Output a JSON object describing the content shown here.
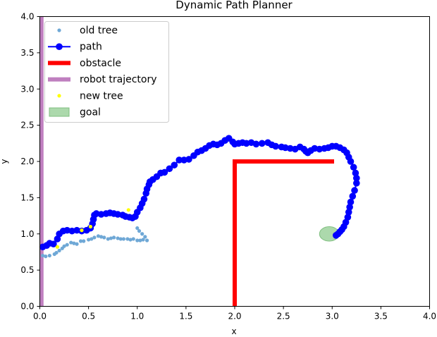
{
  "chart_data": {
    "type": "scatter",
    "title": "Dynamic Path Planner",
    "xlabel": "x",
    "ylabel": "y",
    "xlim": [
      0.0,
      4.0
    ],
    "ylim": [
      0.0,
      4.0
    ],
    "grid": false,
    "legend_position": "top-left",
    "x_ticks": [
      "0.0",
      "0.5",
      "1.0",
      "1.5",
      "2.0",
      "2.5",
      "3.0",
      "3.5",
      "4.0"
    ],
    "y_ticks": [
      "0.0",
      "0.5",
      "1.0",
      "1.5",
      "2.0",
      "2.5",
      "3.0",
      "3.5",
      "4.0"
    ],
    "legend": [
      {
        "label": "old tree",
        "kind": "dot",
        "color": "#6fa8d6"
      },
      {
        "label": "path",
        "kind": "line-marker",
        "color": "#0000ff"
      },
      {
        "label": "obstacle",
        "kind": "thick-line",
        "color": "#ff0000"
      },
      {
        "label": "robot trajectory",
        "kind": "thick-line",
        "color": "#bf7fbf"
      },
      {
        "label": "new tree",
        "kind": "dot",
        "color": "#ffff00"
      },
      {
        "label": "goal",
        "kind": "patch",
        "color": "#90cc90"
      }
    ],
    "series": [
      {
        "name": "old tree",
        "color": "#6fa8d6",
        "x": [
          0.03,
          0.06,
          0.1,
          0.15,
          0.17,
          0.2,
          0.23,
          0.25,
          0.28,
          0.32,
          0.35,
          0.38,
          0.42,
          0.45,
          0.5,
          0.53,
          0.56,
          0.6,
          0.63,
          0.66,
          0.7,
          0.73,
          0.76,
          0.8,
          0.83,
          0.86,
          0.9,
          0.93,
          0.96,
          1.0,
          1.03,
          1.06,
          1.1,
          1.0,
          1.02,
          1.05,
          1.08
        ],
        "y": [
          0.7,
          0.69,
          0.7,
          0.72,
          0.74,
          0.77,
          0.8,
          0.83,
          0.85,
          0.88,
          0.87,
          0.86,
          0.9,
          0.9,
          0.92,
          0.93,
          0.95,
          0.97,
          0.96,
          0.95,
          0.93,
          0.94,
          0.95,
          0.94,
          0.93,
          0.93,
          0.93,
          0.92,
          0.93,
          0.91,
          0.91,
          0.92,
          0.91,
          1.08,
          1.04,
          1.0,
          0.96
        ]
      },
      {
        "name": "path",
        "color": "#0000ff",
        "x": [
          0.03,
          0.07,
          0.1,
          0.14,
          0.18,
          0.2,
          0.24,
          0.28,
          0.33,
          0.38,
          0.43,
          0.48,
          0.52,
          0.54,
          0.55,
          0.56,
          0.58,
          0.63,
          0.68,
          0.72,
          0.76,
          0.8,
          0.85,
          0.88,
          0.92,
          0.95,
          0.98,
          1.0,
          1.03,
          1.05,
          1.07,
          1.09,
          1.1,
          1.12,
          1.13,
          1.16,
          1.2,
          1.24,
          1.28,
          1.33,
          1.38,
          1.43,
          1.48,
          1.53,
          1.58,
          1.62,
          1.66,
          1.7,
          1.74,
          1.78,
          1.82,
          1.86,
          1.9,
          1.94,
          1.98,
          2.0,
          2.04,
          2.08,
          2.12,
          2.17,
          2.22,
          2.28,
          2.34,
          2.38,
          2.42,
          2.48,
          2.52,
          2.57,
          2.62,
          2.67,
          2.71,
          2.73,
          2.75,
          2.78,
          2.82,
          2.87,
          2.92,
          2.96,
          3.0,
          3.04,
          3.08,
          3.12,
          3.15,
          3.17,
          3.19,
          3.22,
          3.24,
          3.25,
          3.25,
          3.23,
          3.21,
          3.19,
          3.18,
          3.17,
          3.16,
          3.14,
          3.12,
          3.1,
          3.08,
          3.06,
          3.04
        ],
        "y": [
          0.82,
          0.84,
          0.87,
          0.86,
          0.93,
          1.0,
          1.04,
          1.05,
          1.04,
          1.05,
          1.04,
          1.05,
          1.08,
          1.14,
          1.2,
          1.26,
          1.28,
          1.27,
          1.28,
          1.29,
          1.28,
          1.27,
          1.26,
          1.24,
          1.23,
          1.22,
          1.24,
          1.3,
          1.36,
          1.42,
          1.48,
          1.56,
          1.62,
          1.68,
          1.72,
          1.75,
          1.79,
          1.84,
          1.85,
          1.9,
          1.95,
          2.02,
          2.02,
          2.03,
          2.08,
          2.13,
          2.15,
          2.18,
          2.22,
          2.24,
          2.23,
          2.25,
          2.29,
          2.32,
          2.27,
          2.24,
          2.25,
          2.26,
          2.25,
          2.26,
          2.24,
          2.25,
          2.26,
          2.23,
          2.21,
          2.2,
          2.19,
          2.18,
          2.17,
          2.2,
          2.17,
          2.14,
          2.12,
          2.15,
          2.18,
          2.17,
          2.18,
          2.19,
          2.21,
          2.21,
          2.19,
          2.16,
          2.12,
          2.06,
          2.0,
          1.92,
          1.84,
          1.77,
          1.7,
          1.6,
          1.52,
          1.44,
          1.37,
          1.3,
          1.23,
          1.16,
          1.1,
          1.06,
          1.03,
          1.0,
          0.98
        ]
      },
      {
        "name": "new tree",
        "color": "#ffff00",
        "x": [
          0.18,
          0.43,
          0.52,
          0.91
        ],
        "y": [
          0.82,
          1.05,
          1.1,
          1.33
        ]
      }
    ],
    "obstacle": {
      "color": "#ff0000",
      "x": [
        2.0,
        2.0,
        3.02
      ],
      "y": [
        0.0,
        2.0,
        2.0
      ]
    },
    "robot_trajectory": {
      "color": "#bf7fbf",
      "x": [
        0.02,
        0.02
      ],
      "y": [
        0.0,
        4.0
      ]
    },
    "goal": {
      "color": "#90cc90",
      "cx": 2.97,
      "cy": 1.0,
      "rx": 0.1,
      "ry": 0.1
    }
  }
}
